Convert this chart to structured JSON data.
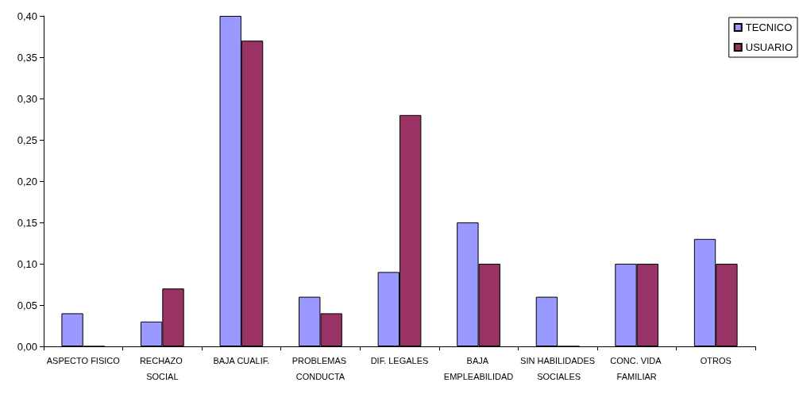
{
  "chart_data": {
    "type": "bar",
    "categories": [
      "ASPECTO FISICO",
      "RECHAZO SOCIAL",
      "BAJA CUALIF.",
      "PROBLEMAS CONDUCTA",
      "DIF. LEGALES",
      "BAJA EMPLEABILIDAD",
      "SIN HABILIDADES SOCIALES",
      "CONC. VIDA FAMILIAR",
      "OTROS"
    ],
    "series": [
      {
        "name": "TECNICO",
        "color": "#9999ff",
        "values": [
          0.04,
          0.03,
          0.4,
          0.06,
          0.09,
          0.15,
          0.06,
          0.1,
          0.13
        ]
      },
      {
        "name": "USUARIO",
        "color": "#993366",
        "values": [
          0,
          0.07,
          0.37,
          0.04,
          0.28,
          0.1,
          0,
          0.1,
          0.1
        ]
      }
    ],
    "ylim": [
      0,
      0.4
    ],
    "yticks": [
      {
        "value": 0,
        "label": "0,00"
      },
      {
        "value": 0.05,
        "label": "0,05"
      },
      {
        "value": 0.1,
        "label": "0,10"
      },
      {
        "value": 0.15,
        "label": "0,15"
      },
      {
        "value": 0.2,
        "label": "0,20"
      },
      {
        "value": 0.25,
        "label": "0,25"
      },
      {
        "value": 0.3,
        "label": "0,30"
      },
      {
        "value": 0.35,
        "label": "0,35"
      },
      {
        "value": 0.4,
        "label": "0,40"
      }
    ],
    "grid": false,
    "legend": "top right"
  }
}
